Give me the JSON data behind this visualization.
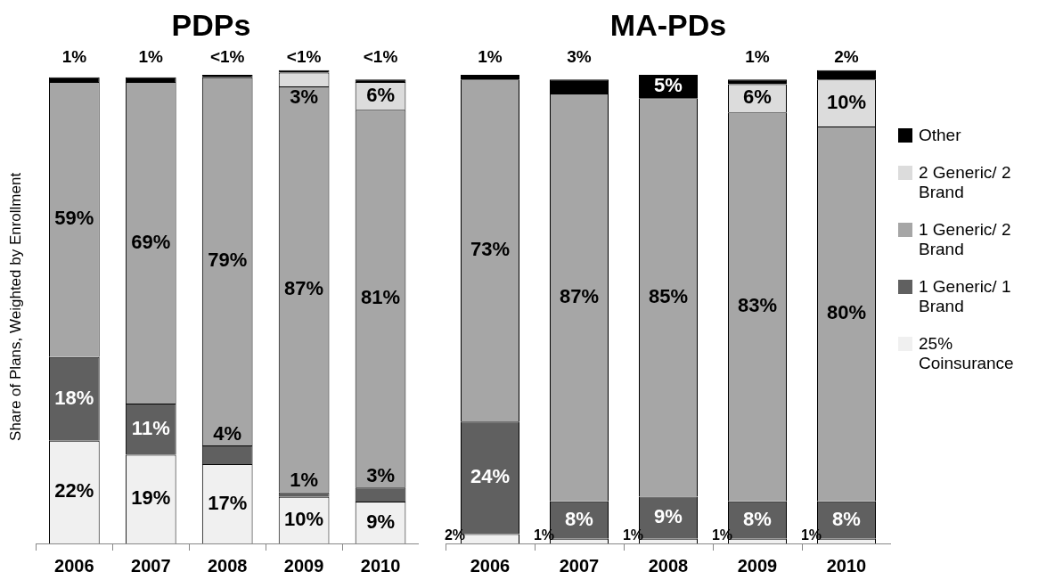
{
  "chart_data": [
    {
      "type": "bar",
      "title": "PDPs",
      "ylabel": "Share of Plans, Weighted by Enrollment",
      "categories": [
        "2006",
        "2007",
        "2008",
        "2009",
        "2010"
      ],
      "stacked": true,
      "legend": false,
      "series": [
        {
          "color": "#f0f0f0",
          "values": [
            22,
            19,
            17,
            10,
            9
          ],
          "value_labels": [
            "22%",
            "19%",
            "17%",
            "10%",
            "9%"
          ]
        },
        {
          "color": "#606060",
          "values": [
            18,
            11,
            4,
            1,
            3
          ],
          "value_labels": [
            "18%",
            "11%",
            "4%",
            "1%",
            "3%"
          ]
        },
        {
          "color": "#a6a6a6",
          "values": [
            59,
            69,
            79,
            87,
            81
          ],
          "value_labels": [
            "59%",
            "69%",
            "79%",
            "87%",
            "81%"
          ]
        },
        {
          "color": "#dcdcdc",
          "values": [
            null,
            null,
            null,
            3,
            6
          ],
          "value_labels": [
            null,
            null,
            null,
            "3%",
            "6%"
          ]
        },
        {
          "color": "#000000",
          "values": [
            1,
            1,
            0.5,
            0.5,
            0.5
          ],
          "value_labels": [
            "1%",
            "1%",
            "<1%",
            "<1%",
            "<1%"
          ]
        }
      ]
    },
    {
      "type": "bar",
      "title": "MA-PDs",
      "categories": [
        "2006",
        "2007",
        "2008",
        "2009",
        "2010"
      ],
      "stacked": true,
      "legend": "right",
      "series": [
        {
          "name": "25% Coinsurance",
          "color": "#f0f0f0",
          "values": [
            2,
            1,
            1,
            1,
            1
          ],
          "value_labels": [
            "2%",
            "1%",
            "1%",
            "1%",
            "1%"
          ]
        },
        {
          "name": "1 Generic/ 1 Brand",
          "color": "#606060",
          "values": [
            24,
            8,
            9,
            8,
            8
          ],
          "value_labels": [
            "24%",
            "8%",
            "9%",
            "8%",
            "8%"
          ]
        },
        {
          "name": "1 Generic/ 2 Brand",
          "color": "#a6a6a6",
          "values": [
            73,
            87,
            85,
            83,
            80
          ],
          "value_labels": [
            "73%",
            "87%",
            "85%",
            "83%",
            "80%"
          ]
        },
        {
          "name": "2 Generic/ 2 Brand",
          "color": "#dcdcdc",
          "values": [
            null,
            null,
            null,
            6,
            10
          ],
          "value_labels": [
            null,
            null,
            null,
            "6%",
            "10%"
          ]
        },
        {
          "name": "Other",
          "color": "#000000",
          "values": [
            1,
            3,
            5,
            1,
            2
          ],
          "value_labels": [
            "1%",
            "3%",
            "5%",
            "1%",
            "2%"
          ]
        }
      ]
    }
  ]
}
